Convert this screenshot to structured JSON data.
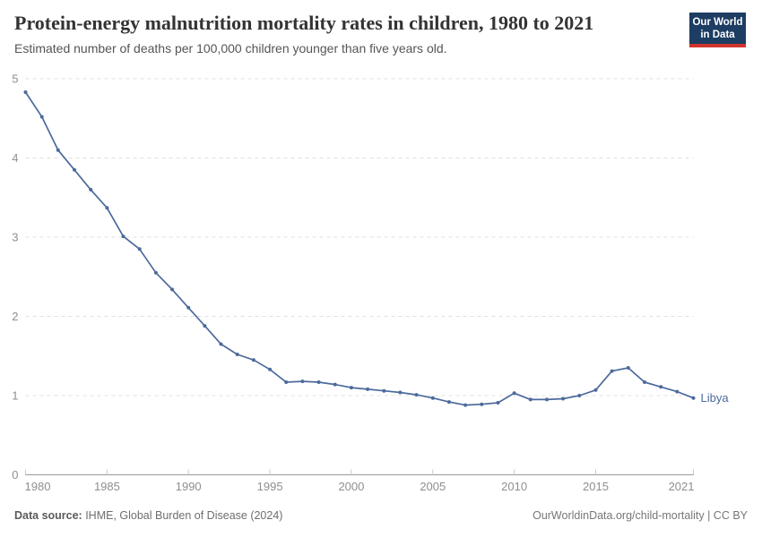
{
  "header": {
    "title": "Protein-energy malnutrition mortality rates in children, 1980 to 2021",
    "subtitle": "Estimated number of deaths per 100,000 children younger than five years old.",
    "logo": {
      "line1": "Our World",
      "line2": "in Data",
      "bg_color": "#1d3d63",
      "accent_color": "#d0342c"
    }
  },
  "chart_data": {
    "type": "line",
    "title": "Protein-energy malnutrition mortality rates in children, 1980 to 2021",
    "subtitle": "Estimated number of deaths per 100,000 children younger than five years old.",
    "xlabel": "",
    "ylabel": "",
    "xlim": [
      1980,
      2021
    ],
    "ylim": [
      0,
      5
    ],
    "xticks": [
      1980,
      1985,
      1990,
      1995,
      2000,
      2005,
      2010,
      2015,
      2021
    ],
    "yticks": [
      0,
      1,
      2,
      3,
      4,
      5
    ],
    "grid": "horizontal-dashed",
    "legend": "end-of-line-label",
    "series": [
      {
        "name": "Libya",
        "color": "#4c6a9c",
        "x": [
          1980,
          1981,
          1982,
          1983,
          1984,
          1985,
          1986,
          1987,
          1988,
          1989,
          1990,
          1991,
          1992,
          1993,
          1994,
          1995,
          1996,
          1997,
          1998,
          1999,
          2000,
          2001,
          2002,
          2003,
          2004,
          2005,
          2006,
          2007,
          2008,
          2009,
          2010,
          2011,
          2012,
          2013,
          2014,
          2015,
          2016,
          2017,
          2018,
          2019,
          2020,
          2021
        ],
        "values": [
          4.83,
          4.52,
          4.1,
          3.85,
          3.6,
          3.37,
          3.01,
          2.85,
          2.55,
          2.34,
          2.11,
          1.88,
          1.65,
          1.52,
          1.45,
          1.33,
          1.17,
          1.18,
          1.17,
          1.14,
          1.1,
          1.08,
          1.06,
          1.04,
          1.01,
          0.97,
          0.92,
          0.88,
          0.89,
          0.91,
          1.03,
          0.95,
          0.95,
          0.96,
          1.0,
          1.07,
          1.31,
          1.35,
          1.17,
          1.11,
          1.05,
          0.97
        ]
      }
    ],
    "axis_color": "#9a9a9a",
    "gridline_color": "#e0e0e0",
    "tick_label_color": "#8f8f8f"
  },
  "footer": {
    "source_label": "Data source:",
    "source_text": " IHME, Global Burden of Disease (2024)",
    "link_text": "OurWorldinData.org/child-mortality",
    "license_text": " | CC BY"
  }
}
